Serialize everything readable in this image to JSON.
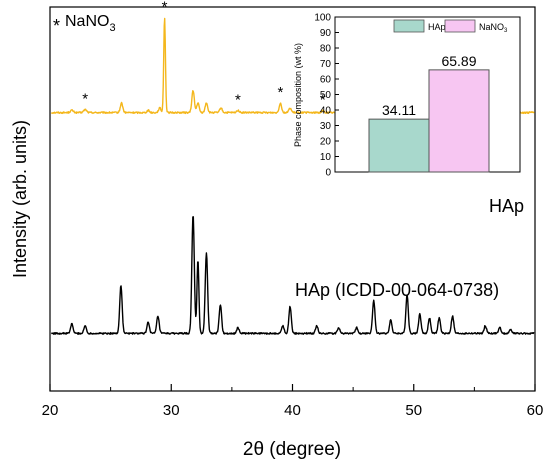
{
  "chart_data": [
    {
      "type": "line",
      "xlabel_main": "2θ",
      "xlabel_unit": "(degree)",
      "ylabel": "Intensity (arb. units)",
      "xlim": [
        20,
        60
      ],
      "xticks": [
        "20",
        "30",
        "40",
        "50",
        "60"
      ],
      "yticks": false,
      "grid": false,
      "legend_marker": "*",
      "legend_label": "NaNO",
      "legend_sub": "3",
      "series": [
        {
          "name": "HAp",
          "color": "#f4b71c",
          "baseline_level": 0.725,
          "peaks": [
            {
              "x": 21.8,
              "h": 0.006,
              "w": 0.12
            },
            {
              "x": 22.9,
              "h": 0.008,
              "w": 0.12
            },
            {
              "x": 25.9,
              "h": 0.025,
              "w": 0.1
            },
            {
              "x": 28.1,
              "h": 0.006,
              "w": 0.1
            },
            {
              "x": 29.05,
              "h": 0.012,
              "w": 0.1
            },
            {
              "x": 29.45,
              "h": 0.248,
              "w": 0.07
            },
            {
              "x": 31.8,
              "h": 0.058,
              "w": 0.1
            },
            {
              "x": 32.2,
              "h": 0.025,
              "w": 0.1
            },
            {
              "x": 32.9,
              "h": 0.026,
              "w": 0.1
            },
            {
              "x": 34.1,
              "h": 0.012,
              "w": 0.1
            },
            {
              "x": 35.5,
              "h": 0.006,
              "w": 0.1
            },
            {
              "x": 39.0,
              "h": 0.025,
              "w": 0.1
            },
            {
              "x": 39.8,
              "h": 0.012,
              "w": 0.1
            },
            {
              "x": 42.5,
              "h": 0.005,
              "w": 0.1
            },
            {
              "x": 46.8,
              "h": 0.014,
              "w": 0.1
            },
            {
              "x": 47.9,
              "h": 0.018,
              "w": 0.1
            },
            {
              "x": 48.5,
              "h": 0.01,
              "w": 0.1
            },
            {
              "x": 49.4,
              "h": 0.012,
              "w": 0.1
            },
            {
              "x": 50.5,
              "h": 0.006,
              "w": 0.1
            },
            {
              "x": 53.2,
              "h": 0.005,
              "w": 0.1
            },
            {
              "x": 56.0,
              "h": 0.004,
              "w": 0.1
            }
          ],
          "label": "HAp"
        },
        {
          "name": "HAp (ICDD-00-064-0738)",
          "color": "#000000",
          "baseline_level": 0.15,
          "peaks": [
            {
              "x": 21.8,
              "h": 0.025,
              "w": 0.1
            },
            {
              "x": 22.9,
              "h": 0.02,
              "w": 0.1
            },
            {
              "x": 25.85,
              "h": 0.125,
              "w": 0.1
            },
            {
              "x": 28.1,
              "h": 0.03,
              "w": 0.1
            },
            {
              "x": 28.9,
              "h": 0.045,
              "w": 0.1
            },
            {
              "x": 31.8,
              "h": 0.31,
              "w": 0.1
            },
            {
              "x": 32.2,
              "h": 0.19,
              "w": 0.08
            },
            {
              "x": 32.9,
              "h": 0.21,
              "w": 0.1
            },
            {
              "x": 34.05,
              "h": 0.075,
              "w": 0.1
            },
            {
              "x": 35.5,
              "h": 0.015,
              "w": 0.1
            },
            {
              "x": 39.2,
              "h": 0.02,
              "w": 0.1
            },
            {
              "x": 39.8,
              "h": 0.07,
              "w": 0.1
            },
            {
              "x": 42.0,
              "h": 0.02,
              "w": 0.1
            },
            {
              "x": 43.8,
              "h": 0.015,
              "w": 0.1
            },
            {
              "x": 45.3,
              "h": 0.015,
              "w": 0.1
            },
            {
              "x": 46.7,
              "h": 0.085,
              "w": 0.1
            },
            {
              "x": 48.1,
              "h": 0.035,
              "w": 0.1
            },
            {
              "x": 49.45,
              "h": 0.1,
              "w": 0.1
            },
            {
              "x": 50.5,
              "h": 0.05,
              "w": 0.1
            },
            {
              "x": 51.3,
              "h": 0.04,
              "w": 0.1
            },
            {
              "x": 52.1,
              "h": 0.04,
              "w": 0.1
            },
            {
              "x": 53.2,
              "h": 0.045,
              "w": 0.1
            },
            {
              "x": 55.9,
              "h": 0.02,
              "w": 0.1
            },
            {
              "x": 57.1,
              "h": 0.015,
              "w": 0.1
            },
            {
              "x": 58.0,
              "h": 0.01,
              "w": 0.1
            }
          ],
          "label": "HAp (ICDD-00-064-0738)"
        }
      ],
      "asterisk_x": [
        22.9,
        29.45,
        35.5,
        39.0,
        42.5,
        46.8,
        47.9,
        48.5
      ]
    },
    {
      "type": "bar",
      "ylabel": "Phase composition (wt %)",
      "ylim": [
        0,
        100
      ],
      "yticks": [
        "0",
        "10",
        "20",
        "30",
        "40",
        "50",
        "60",
        "70",
        "80",
        "90",
        "100"
      ],
      "categories": [
        "HAp",
        "NaNO3"
      ],
      "values": [
        34.11,
        65.89
      ],
      "value_labels": [
        "34.11",
        "65.89"
      ],
      "colors": [
        "#a8d8cc",
        "#f7c6f2"
      ],
      "legend": [
        {
          "label": "HAp",
          "sub": ""
        },
        {
          "label": "NaNO",
          "sub": "3"
        }
      ]
    }
  ]
}
